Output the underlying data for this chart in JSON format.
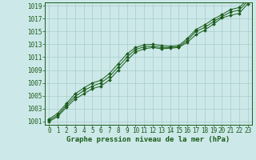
{
  "xlabel": "Graphe pression niveau de la mer (hPa)",
  "xlim": [
    -0.5,
    23.5
  ],
  "ylim": [
    1000.5,
    1019.5
  ],
  "yticks": [
    1001,
    1003,
    1005,
    1007,
    1009,
    1011,
    1013,
    1015,
    1017,
    1019
  ],
  "xticks": [
    0,
    1,
    2,
    3,
    4,
    5,
    6,
    7,
    8,
    9,
    10,
    11,
    12,
    13,
    14,
    15,
    16,
    17,
    18,
    19,
    20,
    21,
    22,
    23
  ],
  "bg_color": "#cce8e8",
  "grid_color": "#aacccc",
  "line_color": "#1a5c1a",
  "series1": [
    1001.0,
    1001.8,
    1003.2,
    1004.5,
    1005.3,
    1006.1,
    1006.5,
    1007.5,
    1009.0,
    1010.5,
    1011.8,
    1012.3,
    1012.5,
    1012.3,
    1012.4,
    1012.5,
    1013.3,
    1014.5,
    1015.2,
    1016.1,
    1017.1,
    1017.5,
    1017.8,
    1019.3
  ],
  "series2": [
    1001.2,
    1002.0,
    1003.5,
    1004.9,
    1005.8,
    1006.5,
    1007.0,
    1008.0,
    1009.5,
    1011.0,
    1012.2,
    1012.6,
    1012.7,
    1012.5,
    1012.5,
    1012.6,
    1013.6,
    1015.0,
    1015.6,
    1016.5,
    1017.3,
    1018.0,
    1018.3,
    1019.7
  ],
  "series3": [
    1001.4,
    1002.3,
    1003.8,
    1005.3,
    1006.2,
    1007.0,
    1007.4,
    1008.5,
    1010.0,
    1011.5,
    1012.5,
    1012.9,
    1013.0,
    1012.8,
    1012.7,
    1012.8,
    1013.9,
    1015.3,
    1016.0,
    1016.9,
    1017.6,
    1018.4,
    1018.7,
    1020.0
  ],
  "tick_fontsize": 5.5,
  "xlabel_fontsize": 6.5
}
